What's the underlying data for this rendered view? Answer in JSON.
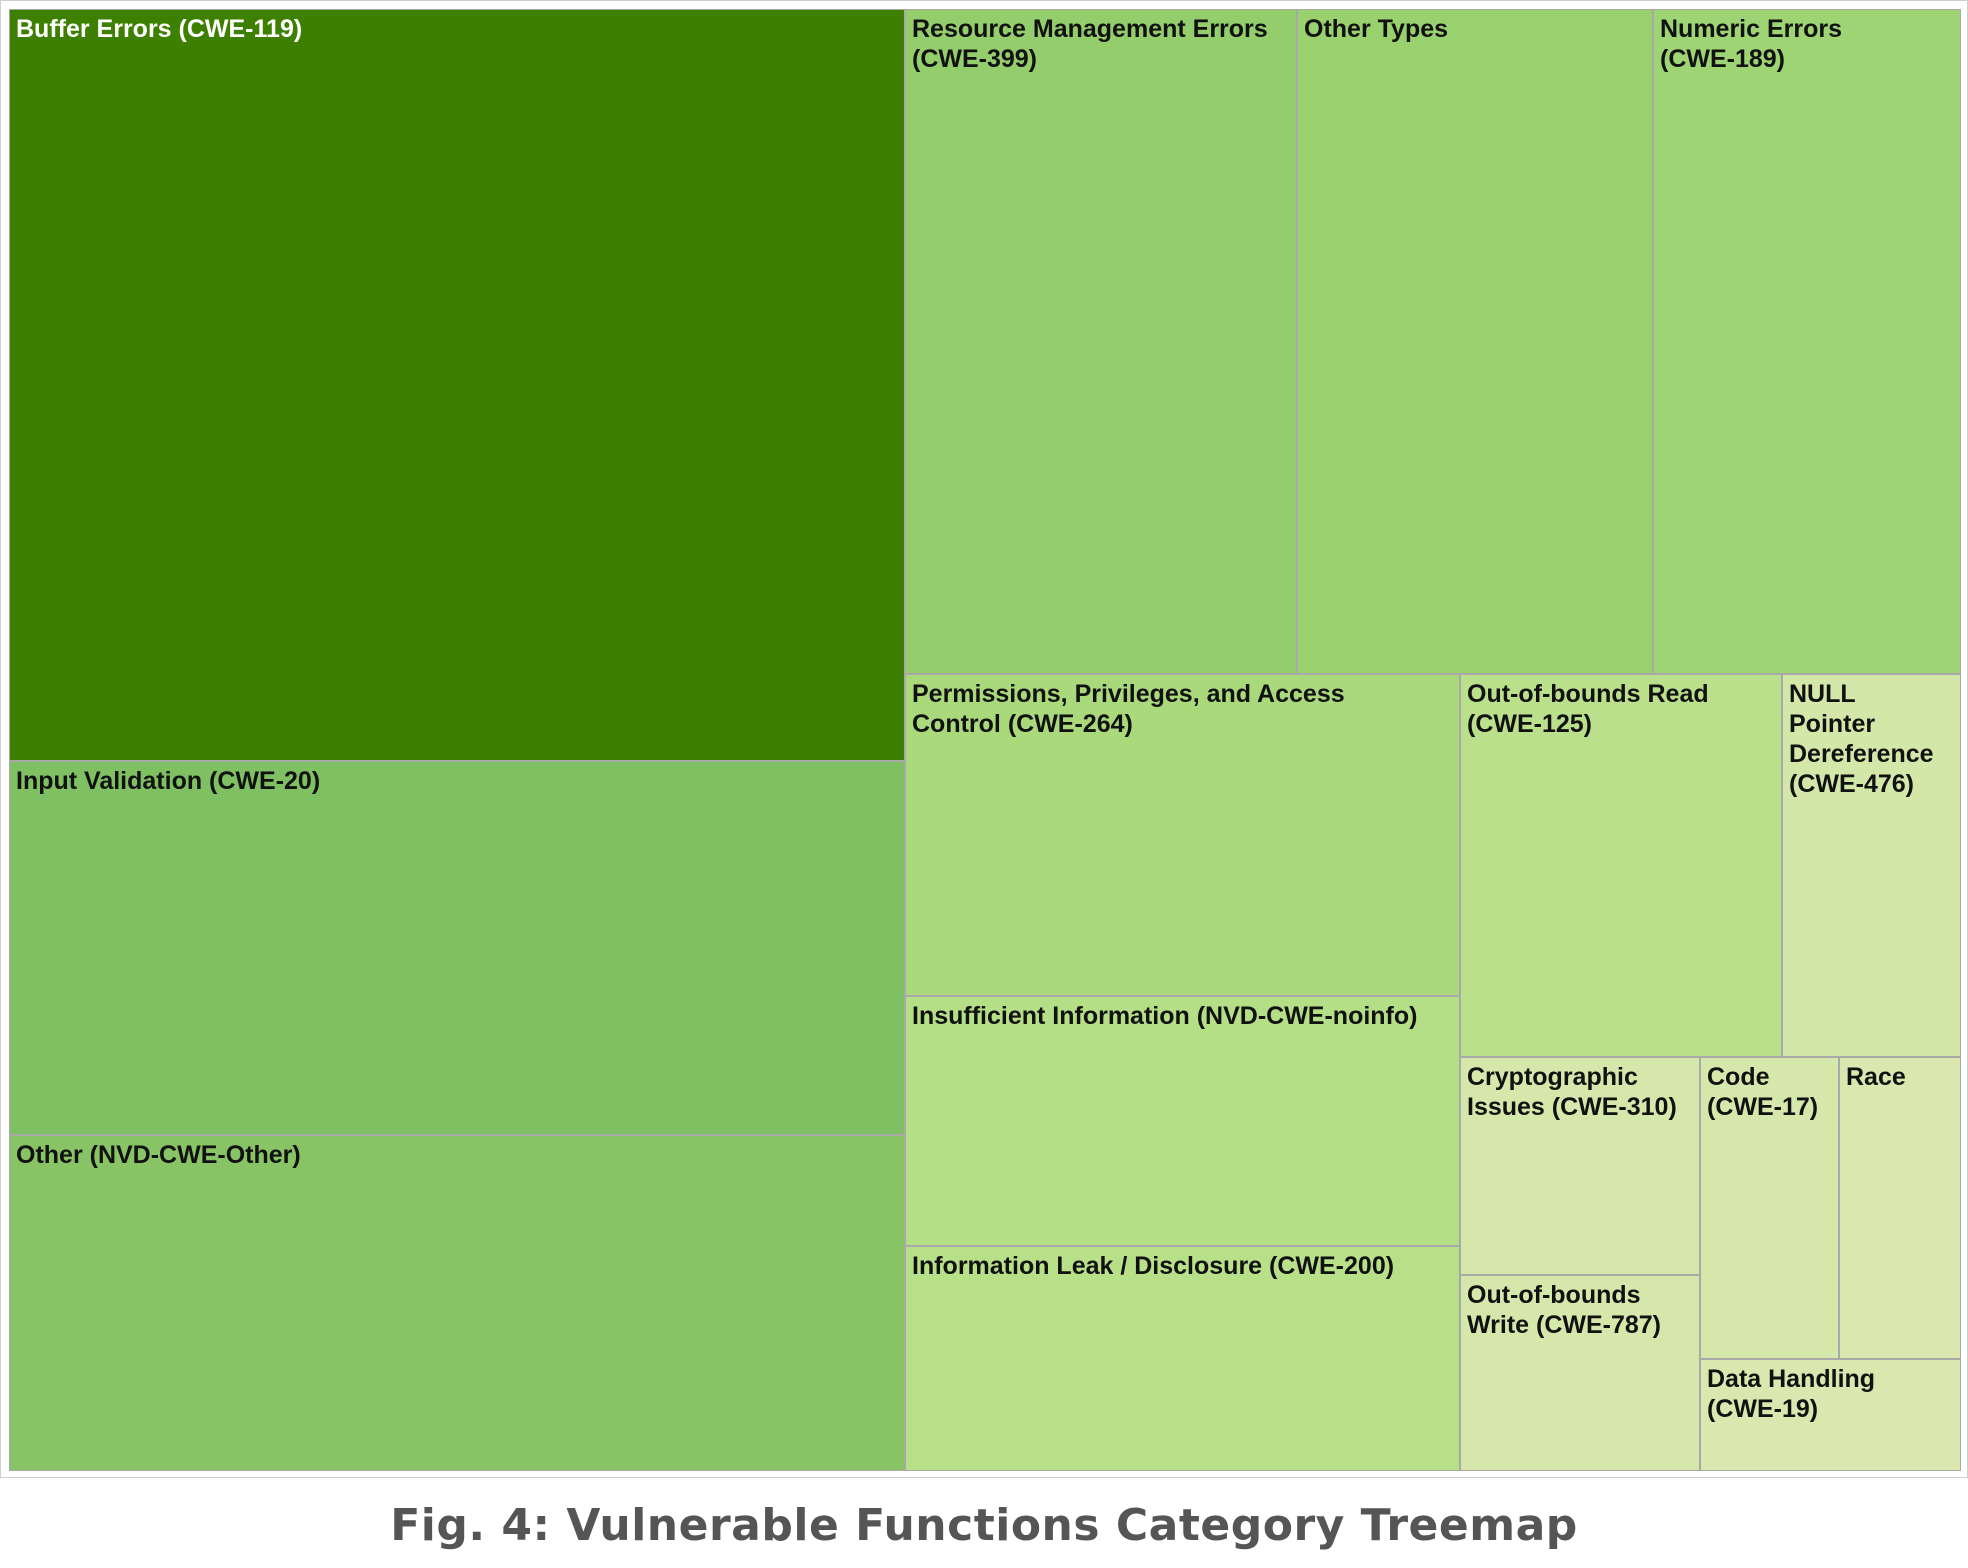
{
  "caption": "Fig. 4: Vulnerable Functions Category Treemap",
  "chart_data": {
    "type": "treemap",
    "title": "",
    "cells": [
      {
        "label": "Buffer Errors (CWE-119)",
        "color": "#3d8000",
        "light_text": true
      },
      {
        "label": "Input Validation (CWE-20)",
        "color": "#7fc062"
      },
      {
        "label": "Other (NVD-CWE-Other)",
        "color": "#88c466"
      },
      {
        "label": "Resource Management Errors\n(CWE-399)",
        "color": "#94cd6b"
      },
      {
        "label": "Other Types",
        "color": "#9ad16f"
      },
      {
        "label": "Numeric Errors\n(CWE-189)",
        "color": "#9ed473"
      },
      {
        "label": "Permissions, Privileges, and Access\nControl (CWE-264)",
        "color": "#aad97c"
      },
      {
        "label": "Insufficient Information (NVD-CWE-noinfo)",
        "color": "#b5df86"
      },
      {
        "label": "Information Leak / Disclosure (CWE-200)",
        "color": "#b8e088"
      },
      {
        "label": "Out-of-bounds Read\n(CWE-125)",
        "color": "#bbe08c"
      },
      {
        "label": "NULL\nPointer\nDereference\n(CWE-476)",
        "color": "#d2e7a8"
      },
      {
        "label": "Cryptographic\nIssues (CWE-310)",
        "color": "#d6e7ab"
      },
      {
        "label": "Code\n(CWE-17)",
        "color": "#d6e7ab"
      },
      {
        "label": "Race",
        "color": "#dae8b0"
      },
      {
        "label": "Out-of-bounds\nWrite (CWE-787)",
        "color": "#d6e7ab"
      },
      {
        "label": "Data Handling\n(CWE-19)",
        "color": "#dae8b0"
      }
    ]
  }
}
